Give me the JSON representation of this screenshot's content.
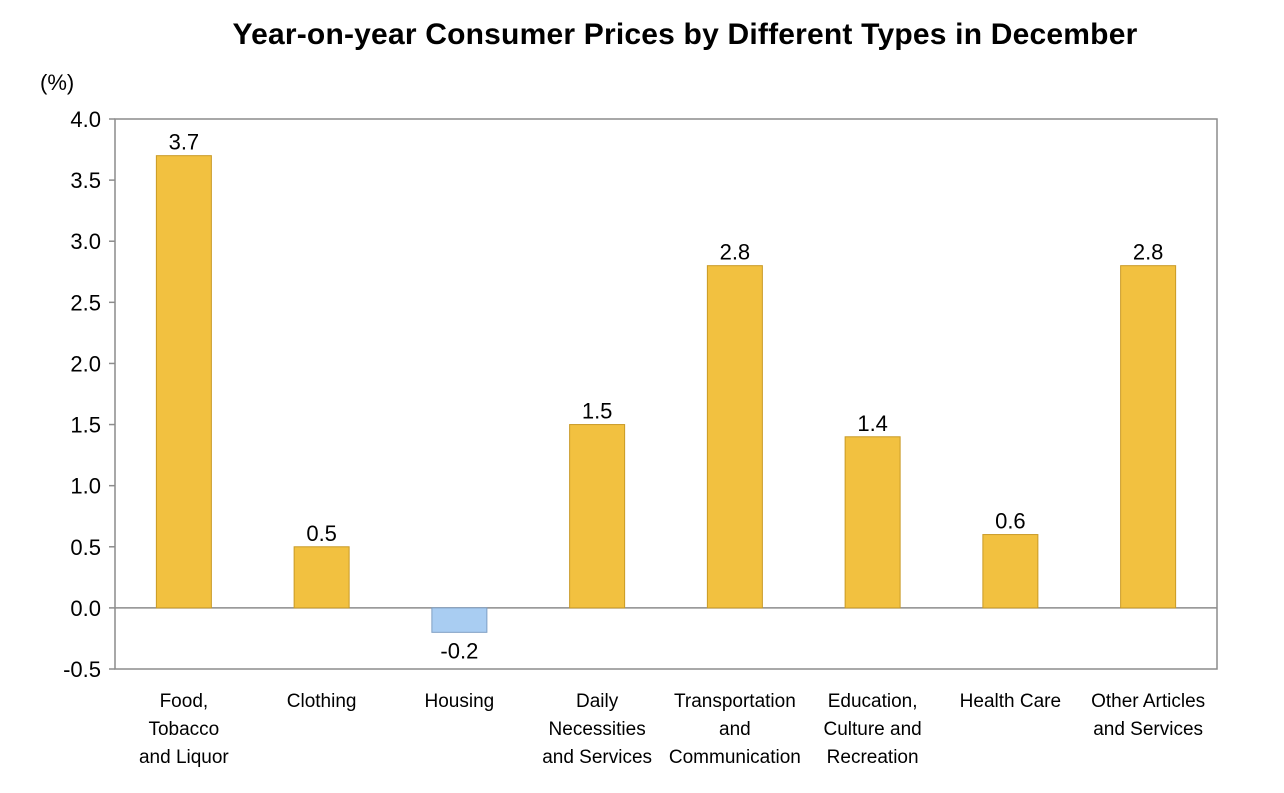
{
  "chart_data": {
    "type": "bar",
    "title": "Year-on-year Consumer Prices by Different Types in December",
    "ylabel": "(%)",
    "xlabel": "",
    "categories": [
      "Food, Tobacco and Liquor",
      "Clothing",
      "Housing",
      "Daily Necessities and Services",
      "Transportation and Communication",
      "Education, Culture and Recreation",
      "Health Care",
      "Other Articles and Services"
    ],
    "category_lines": [
      [
        "Food,",
        "Tobacco",
        "and Liquor"
      ],
      [
        "Clothing"
      ],
      [
        "Housing"
      ],
      [
        "Daily",
        "Necessities",
        "and Services"
      ],
      [
        "Transportation",
        "and",
        "Communication"
      ],
      [
        "Education,",
        "Culture and",
        "Recreation"
      ],
      [
        "Health Care"
      ],
      [
        "Other Articles",
        "and Services"
      ]
    ],
    "values": [
      3.7,
      0.5,
      -0.2,
      1.5,
      2.8,
      1.4,
      0.6,
      2.8
    ],
    "value_labels": [
      "3.7",
      "0.5",
      "-0.2",
      "1.5",
      "2.8",
      "1.4",
      "0.6",
      "2.8"
    ],
    "ylim": [
      -0.5,
      4.0
    ],
    "yticks": [
      "4.0",
      "3.5",
      "3.0",
      "2.5",
      "2.0",
      "1.5",
      "1.0",
      "0.5",
      "0.0",
      "-0.5"
    ],
    "grid": false,
    "colors": {
      "positive": "#F2C140",
      "negative": "#A9CDF2",
      "axis": "#8c8c8c"
    }
  }
}
